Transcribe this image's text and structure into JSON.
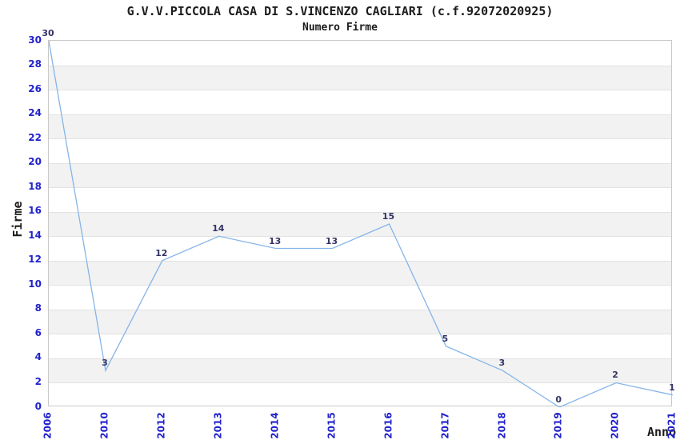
{
  "chart_data": {
    "type": "line",
    "title": "G.V.V.PICCOLA CASA DI S.VINCENZO CAGLIARI (c.f.92072020925)",
    "subtitle": "Numero Firme",
    "xlabel": "Anno",
    "ylabel": "Firme",
    "categories": [
      "2006",
      "2010",
      "2012",
      "2013",
      "2014",
      "2015",
      "2016",
      "2017",
      "2018",
      "2019",
      "2020",
      "2021"
    ],
    "values": [
      30,
      3,
      12,
      14,
      13,
      13,
      15,
      5,
      3,
      0,
      2,
      1
    ],
    "ylim": [
      0,
      30
    ],
    "ytick_step": 2,
    "grid": "horizontal-alternating-bands",
    "legend": "none",
    "style": {
      "line_color": "#85b5e8",
      "tick_label_color": "#2222cc",
      "data_label_color": "#333366",
      "band_color": "#f2f2f2",
      "gridline_color": "#e2e2e2",
      "border_color": "#c9c9c9",
      "text_color": "#1c1c1c"
    }
  }
}
